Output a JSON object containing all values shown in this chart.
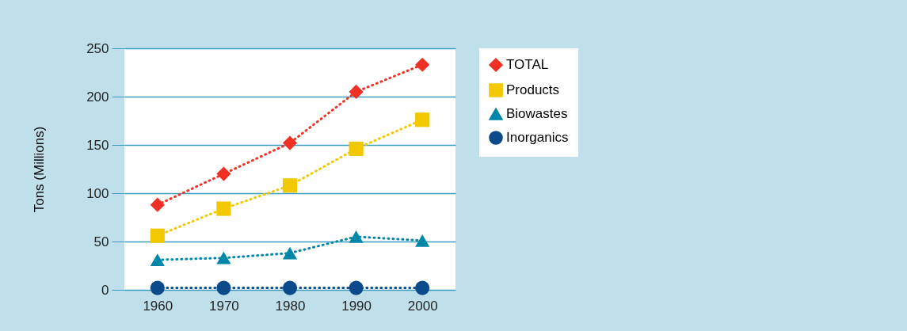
{
  "chart_data": {
    "type": "line",
    "ylabel": "Tons (Millions)",
    "categories": [
      "1960",
      "1970",
      "1980",
      "1990",
      "2000"
    ],
    "series": [
      {
        "name": "TOTAL",
        "color": "#ee3124",
        "marker": "diamond",
        "values": [
          88,
          120,
          152,
          205,
          233
        ]
      },
      {
        "name": "Products",
        "color": "#f2c800",
        "marker": "square",
        "values": [
          56,
          84,
          108,
          146,
          176
        ]
      },
      {
        "name": "Biowastes",
        "color": "#0086a8",
        "marker": "triangle",
        "values": [
          31,
          33,
          38,
          55,
          51
        ]
      },
      {
        "name": "Inorganics",
        "color": "#0b4a8b",
        "marker": "circle",
        "values": [
          2,
          2,
          2,
          2,
          2
        ]
      }
    ],
    "ylim": [
      0,
      250
    ],
    "yticks": [
      0,
      50,
      100,
      150,
      200,
      250
    ],
    "grid": "y",
    "legend": "right",
    "line_style": "dotted"
  }
}
